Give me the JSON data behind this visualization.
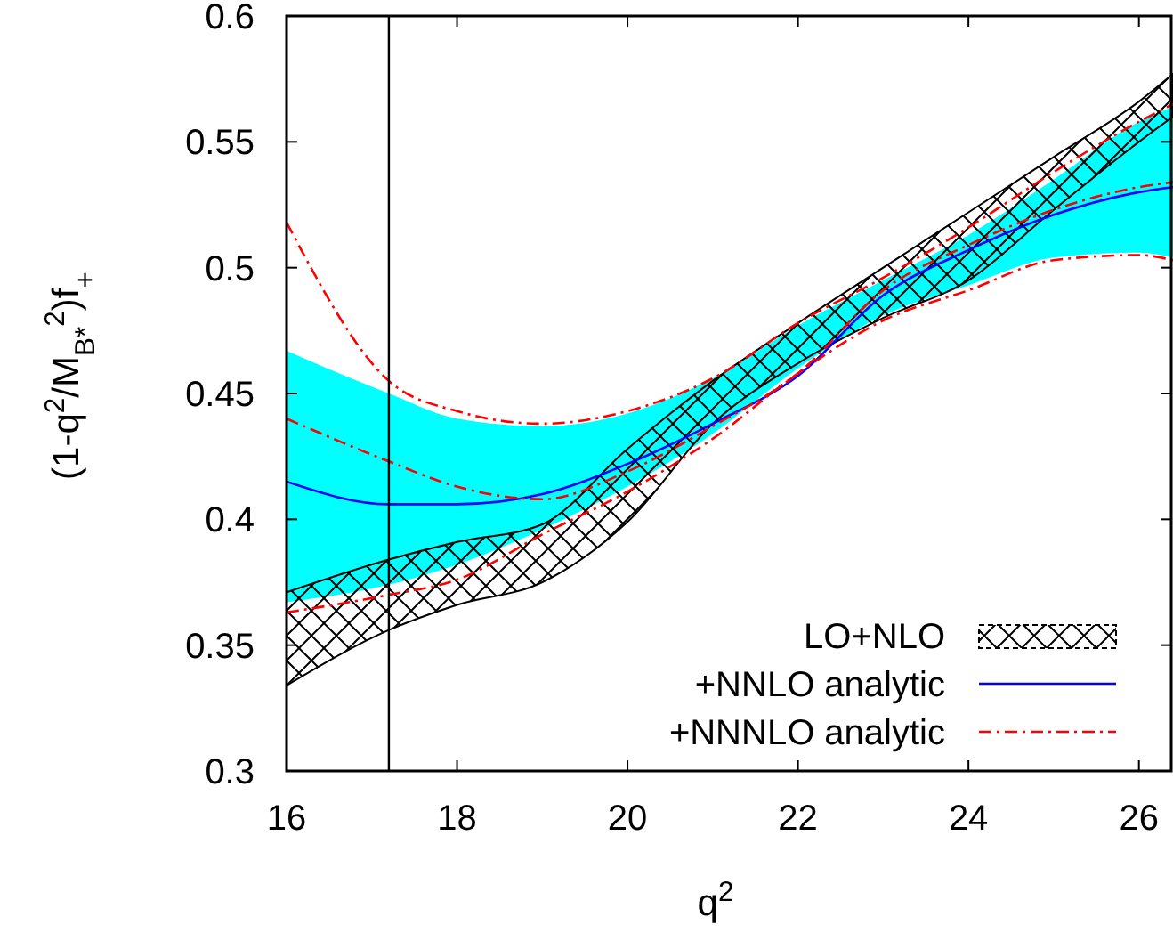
{
  "chart_data": {
    "type": "line",
    "xlabel": "q$^{2}$",
    "ylabel": "(1-q$^{2}$/M$_{B*}$$^{2}$)f$_{+}$",
    "x": [
      16,
      17.2,
      18,
      19,
      20,
      21,
      22,
      23,
      24,
      25,
      26,
      26.4
    ],
    "xlim": [
      16,
      26.4
    ],
    "xticks": [
      16,
      18,
      20,
      22,
      24,
      26
    ],
    "ylim": [
      0.3,
      0.6
    ],
    "yticks": [
      0.3,
      0.35,
      0.4,
      0.45,
      0.5,
      0.55,
      0.6
    ],
    "grid": false,
    "legend": "bottom right",
    "ref_lines": [
      {
        "axis": "x",
        "value": 17.2,
        "color": "#000000"
      }
    ],
    "series": [
      {
        "name": "LO+NLO",
        "type": "area",
        "line_style": "solid",
        "color": "#000000",
        "values": [
          null,
          null,
          null,
          null,
          null,
          null,
          null,
          null,
          null,
          null,
          null,
          null
        ],
        "lower": [
          0.334,
          0.356,
          0.366,
          0.375,
          0.399,
          0.438,
          0.462,
          0.48,
          0.495,
          0.523,
          0.55,
          0.56
        ],
        "upper": [
          0.371,
          0.384,
          0.391,
          0.398,
          0.428,
          0.455,
          0.478,
          0.5,
          0.522,
          0.544,
          0.566,
          0.577
        ]
      },
      {
        "type": "area",
        "color": "#00ffff",
        "values": [
          null,
          null,
          null,
          null,
          null,
          null,
          null,
          null,
          null,
          null,
          null,
          null
        ],
        "lower": [
          0.367,
          0.374,
          0.382,
          0.396,
          0.413,
          0.434,
          0.46,
          0.481,
          0.493,
          0.504,
          0.506,
          0.504
        ],
        "upper": [
          0.467,
          0.45,
          0.44,
          0.437,
          0.442,
          0.456,
          0.477,
          0.495,
          0.513,
          0.535,
          0.558,
          0.564
        ]
      },
      {
        "name": "+NNLO analytic",
        "type": "line",
        "color": "#0000ff",
        "line_style": "solid",
        "values": [
          0.415,
          0.406,
          0.406,
          0.41,
          0.422,
          0.438,
          0.457,
          0.489,
          0.507,
          0.521,
          0.53,
          0.532
        ]
      },
      {
        "name": "+NNNLO analytic",
        "color": "#ff0000",
        "line_style": "dashdot",
        "values": [
          0.44,
          0.423,
          0.413,
          0.408,
          0.419,
          0.437,
          0.458,
          0.491,
          0.509,
          0.523,
          0.532,
          0.534
        ]
      },
      {
        "color": "#ff0000",
        "line_style": "dashdot",
        "values": [
          0.518,
          0.455,
          0.443,
          0.438,
          0.443,
          0.456,
          0.478,
          0.496,
          0.516,
          0.538,
          0.558,
          0.565
        ]
      },
      {
        "color": "#ff0000",
        "line_style": "dashdot",
        "values": [
          0.363,
          0.37,
          0.376,
          0.394,
          0.411,
          0.432,
          0.458,
          0.479,
          0.491,
          0.503,
          0.505,
          0.503
        ]
      }
    ]
  }
}
